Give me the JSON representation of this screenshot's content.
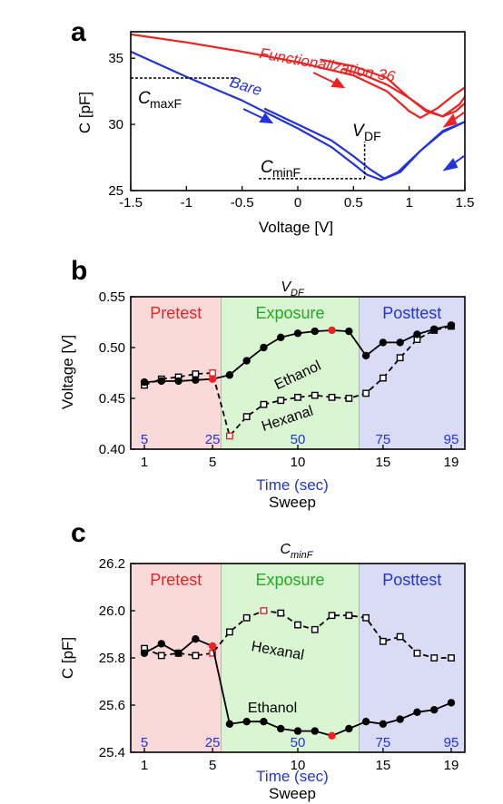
{
  "colors": {
    "red": "#ee2222",
    "blue": "#2233dd",
    "green_text": "#22aa22",
    "pretest_bg": "#fad9d9",
    "exposure_bg": "#d9f5d2",
    "posttest_bg": "#dadcf5",
    "black": "#000000"
  },
  "chart_data": [
    {
      "panel_label": "a",
      "type": "line",
      "title": "",
      "xlabel": "Voltage [V]",
      "ylabel": "C [pF]",
      "xlim": [
        -1.5,
        1.5
      ],
      "ylim": [
        25,
        37
      ],
      "xticks": [
        "-1.5",
        "-1",
        "-0.5",
        "0",
        "0.5",
        "1",
        "1.5"
      ],
      "xtick_values": [
        -1.5,
        -1,
        -0.5,
        0,
        0.5,
        1,
        1.5
      ],
      "yticks": [
        "25",
        "30",
        "35"
      ],
      "ytick_values": [
        25,
        30,
        35
      ],
      "series": [
        {
          "name": "Functionalization 36",
          "color": "red",
          "curves": [
            {
              "x": [
                -1.5,
                -1.0,
                -0.5,
                0.0,
                0.5,
                0.8,
                1.0,
                1.1,
                1.25,
                1.4,
                1.5
              ],
              "y": [
                36.8,
                36.2,
                35.5,
                34.7,
                33.7,
                32.5,
                31.0,
                30.5,
                31.2,
                32.2,
                32.8
              ]
            },
            {
              "x": [
                0.2,
                0.5,
                0.8,
                1.0,
                1.15,
                1.3,
                1.42,
                1.5
              ],
              "y": [
                34.9,
                34.4,
                33.5,
                32.0,
                31.0,
                30.6,
                31.0,
                31.6
              ]
            },
            {
              "x": [
                0.4,
                0.6,
                0.8,
                1.0,
                1.15,
                1.3,
                1.45,
                1.5
              ],
              "y": [
                34.2,
                33.7,
                33.0,
                32.0,
                31.1,
                30.6,
                31.5,
                32.1
              ]
            }
          ]
        },
        {
          "name": "Bare",
          "color": "blue",
          "curves": [
            {
              "x": [
                -1.5,
                -1.0,
                -0.5,
                0.0,
                0.3,
                0.5,
                0.62,
                0.75,
                0.9,
                1.1,
                1.3,
                1.5
              ],
              "y": [
                35.5,
                33.6,
                31.8,
                29.7,
                28.3,
                27.0,
                26.2,
                25.8,
                26.4,
                28.0,
                29.4,
                30.2
              ]
            },
            {
              "x": [
                -0.3,
                0.0,
                0.3,
                0.5,
                0.65,
                0.78,
                0.92,
                1.1,
                1.3,
                1.5
              ],
              "y": [
                31.2,
                30.0,
                28.8,
                27.6,
                26.6,
                25.9,
                26.4,
                28.0,
                29.5,
                30.2
              ]
            }
          ]
        }
      ],
      "annotations": [
        {
          "text_main": "C",
          "text_sub": "maxF",
          "target": [
            -1.5,
            33.5
          ],
          "line_to_x": -0.55
        },
        {
          "text_main": "C",
          "text_sub": "minF",
          "target": [
            -0.35,
            25.9
          ],
          "line_to_x": 0.6
        },
        {
          "text_main": "V",
          "text_sub": "DF",
          "target": [
            0.6,
            25.9
          ],
          "line_to_y": 28.7
        }
      ],
      "grid": false
    },
    {
      "panel_label": "b",
      "type": "line",
      "title": "V",
      "title_sub": "DF",
      "xlabel": "Sweep",
      "x2label": "Time (sec)",
      "ylabel": "Voltage [V]",
      "xlim": [
        0.2,
        19.8
      ],
      "ylim": [
        0.4,
        0.55
      ],
      "xticks": [
        "1",
        "5",
        "10",
        "15",
        "19"
      ],
      "xtick_values": [
        1,
        5,
        10,
        15,
        19
      ],
      "yticks": [
        "0.40",
        "0.45",
        "0.50",
        "0.55"
      ],
      "ytick_values": [
        0.4,
        0.45,
        0.5,
        0.55
      ],
      "time_labels": [
        "5",
        "25",
        "50",
        "75",
        "95"
      ],
      "time_label_x": [
        1,
        5,
        10,
        15,
        19
      ],
      "regions": [
        {
          "label": "Pretest",
          "x0": 0.2,
          "x1": 5.5,
          "color_key": "pretest_bg",
          "text_color": "red"
        },
        {
          "label": "Exposure",
          "x0": 5.5,
          "x1": 13.6,
          "color_key": "exposure_bg",
          "text_color": "green_text"
        },
        {
          "label": "Posttest",
          "x0": 13.6,
          "x1": 19.8,
          "color_key": "posttest_bg",
          "text_color": "blue"
        }
      ],
      "series": [
        {
          "name": "Ethanol",
          "marker": "filled-circle",
          "line": "solid",
          "x": [
            1,
            2,
            3,
            4,
            5,
            6,
            7,
            8,
            9,
            10,
            11,
            12,
            13,
            14,
            15,
            16,
            17,
            18,
            19
          ],
          "y": [
            0.466,
            0.467,
            0.467,
            0.468,
            0.469,
            0.473,
            0.487,
            0.5,
            0.51,
            0.514,
            0.516,
            0.517,
            0.516,
            0.492,
            0.505,
            0.505,
            0.513,
            0.518,
            0.522
          ],
          "highlight_index": [
            4,
            11
          ]
        },
        {
          "name": "Hexanal",
          "marker": "open-square",
          "line": "dashed",
          "x": [
            1,
            2,
            3,
            4,
            5,
            6,
            7,
            8,
            9,
            10,
            11,
            12,
            13,
            14,
            15,
            16,
            17,
            18,
            19
          ],
          "y": [
            0.463,
            0.469,
            0.471,
            0.474,
            0.475,
            0.413,
            0.432,
            0.444,
            0.448,
            0.451,
            0.453,
            0.451,
            0.45,
            0.455,
            0.47,
            0.49,
            0.508,
            0.517,
            0.521
          ],
          "highlight_index": [
            4,
            5
          ]
        }
      ],
      "grid": false
    },
    {
      "panel_label": "c",
      "type": "line",
      "title": "C",
      "title_sub": "minF",
      "xlabel": "Sweep",
      "x2label": "Time (sec)",
      "ylabel": "C [pF]",
      "xlim": [
        0.2,
        19.8
      ],
      "ylim": [
        25.4,
        26.2
      ],
      "xticks": [
        "1",
        "5",
        "10",
        "15",
        "19"
      ],
      "xtick_values": [
        1,
        5,
        10,
        15,
        19
      ],
      "yticks": [
        "25.4",
        "25.6",
        "25.8",
        "26.0",
        "26.2"
      ],
      "ytick_values": [
        25.4,
        25.6,
        25.8,
        26.0,
        26.2
      ],
      "time_labels": [
        "5",
        "25",
        "50",
        "75",
        "95"
      ],
      "time_label_x": [
        1,
        5,
        10,
        15,
        19
      ],
      "regions": [
        {
          "label": "Pretest",
          "x0": 0.2,
          "x1": 5.5,
          "color_key": "pretest_bg",
          "text_color": "red"
        },
        {
          "label": "Exposure",
          "x0": 5.5,
          "x1": 13.6,
          "color_key": "exposure_bg",
          "text_color": "green_text"
        },
        {
          "label": "Posttest",
          "x0": 13.6,
          "x1": 19.8,
          "color_key": "posttest_bg",
          "text_color": "blue"
        }
      ],
      "series": [
        {
          "name": "Ethanol",
          "marker": "filled-circle",
          "line": "solid",
          "x": [
            1,
            2,
            3,
            4,
            5,
            6,
            7,
            8,
            9,
            10,
            11,
            12,
            13,
            14,
            15,
            16,
            17,
            18,
            19
          ],
          "y": [
            25.82,
            25.86,
            25.82,
            25.88,
            25.85,
            25.52,
            25.53,
            25.53,
            25.5,
            25.49,
            25.49,
            25.47,
            25.5,
            25.53,
            25.52,
            25.54,
            25.57,
            25.58,
            25.61
          ],
          "highlight_index": [
            4,
            11
          ]
        },
        {
          "name": "Hexanal",
          "marker": "open-square",
          "line": "dashed",
          "x": [
            1,
            2,
            3,
            4,
            5,
            6,
            7,
            8,
            9,
            10,
            11,
            12,
            13,
            14,
            15,
            16,
            17,
            18,
            19
          ],
          "y": [
            25.84,
            25.81,
            25.82,
            25.81,
            25.82,
            25.91,
            25.97,
            26.0,
            25.99,
            25.94,
            25.92,
            25.98,
            25.98,
            25.97,
            25.87,
            25.89,
            25.82,
            25.8,
            25.8
          ],
          "highlight_index": [
            4,
            7
          ]
        }
      ],
      "grid": false
    }
  ]
}
